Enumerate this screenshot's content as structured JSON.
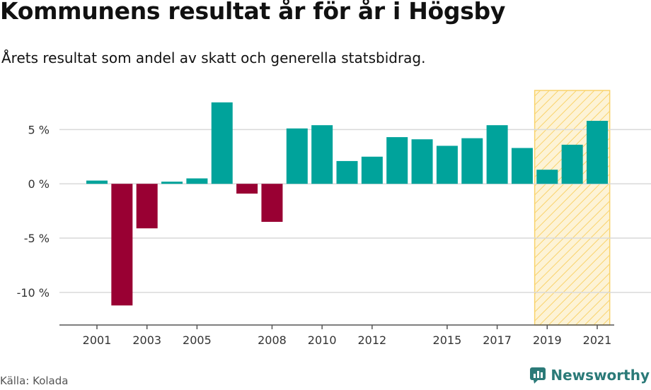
{
  "header": {
    "title": "Kommunens resultat år för år i Högsby",
    "subtitle": "Årets resultat som andel av skatt och generella statsbidrag."
  },
  "footer": {
    "source": "Källa: Kolada",
    "brand": "Newsworthy",
    "brand_icon": "newsworthy-logo-icon"
  },
  "colors": {
    "positive": "#00a39b",
    "negative": "#990033",
    "highlight_fill": "#fde9b3",
    "highlight_stroke": "#f9d36b",
    "grid": "#d9d9d9",
    "brand": "#2b7a78"
  },
  "chart_data": {
    "type": "bar",
    "categories": [
      "2001",
      "2002",
      "2003",
      "2004",
      "2005",
      "2006",
      "2007",
      "2008",
      "2009",
      "2010",
      "2011",
      "2012",
      "2013",
      "2014",
      "2015",
      "2016",
      "2017",
      "2018",
      "2019",
      "2020",
      "2021"
    ],
    "values": [
      0.3,
      -11.2,
      -4.1,
      0.2,
      0.5,
      7.5,
      -0.9,
      -3.5,
      5.1,
      5.4,
      2.1,
      2.5,
      4.3,
      4.1,
      3.5,
      4.2,
      5.4,
      3.3,
      1.3,
      3.6,
      5.8
    ],
    "x_tick_labels": [
      "2001",
      "2003",
      "2005",
      "2008",
      "2010",
      "2012",
      "2015",
      "2017",
      "2019",
      "2021"
    ],
    "y_ticks": [
      5,
      0,
      -5,
      -10
    ],
    "y_tick_labels": [
      "5 %",
      "0 %",
      "-5 %",
      "-10 %"
    ],
    "ylim": [
      -13,
      8.6
    ],
    "highlight": {
      "from": "2019",
      "to": "2021"
    },
    "grid": true,
    "legend": "none"
  }
}
